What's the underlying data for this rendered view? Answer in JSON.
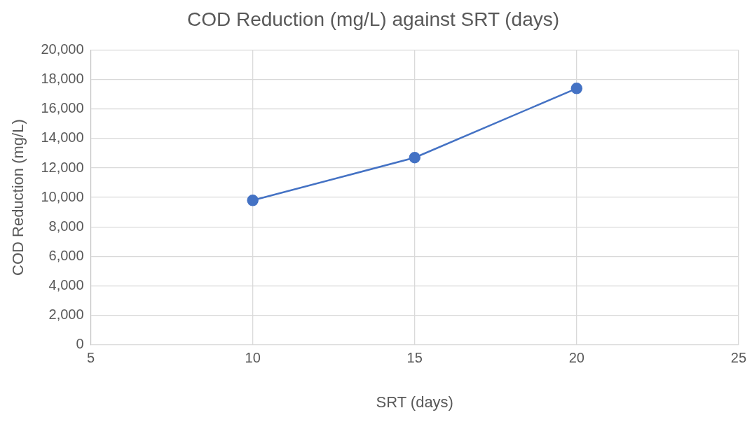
{
  "chart_data": {
    "type": "line",
    "title": "COD Reduction (mg/L) against SRT (days)",
    "xlabel": "SRT (days)",
    "ylabel": "COD Reduction (mg/L)",
    "x": [
      10,
      15,
      20
    ],
    "series": [
      {
        "color": "#4472c4",
        "values": [
          9800,
          12700,
          17400
        ]
      }
    ],
    "xlim": [
      5,
      25
    ],
    "xticks": [
      5,
      10,
      15,
      20,
      25
    ],
    "ylim": [
      0,
      20000
    ],
    "yticks": [
      0,
      {
        "value": 2000,
        "label": "2,000"
      },
      {
        "value": 4000,
        "label": "4,000"
      },
      {
        "value": 6000,
        "label": "6,000"
      },
      {
        "value": 8000,
        "label": "8,000"
      },
      {
        "value": 10000,
        "label": "10,000"
      },
      {
        "value": 12000,
        "label": "12,000"
      },
      {
        "value": 14000,
        "label": "14,000"
      },
      {
        "value": 16000,
        "label": "16,000"
      },
      {
        "value": 18000,
        "label": "18,000"
      },
      {
        "value": 20000,
        "label": "20,000"
      }
    ],
    "grid": true,
    "legend": false,
    "marker": "circle",
    "line_style": "solid"
  }
}
